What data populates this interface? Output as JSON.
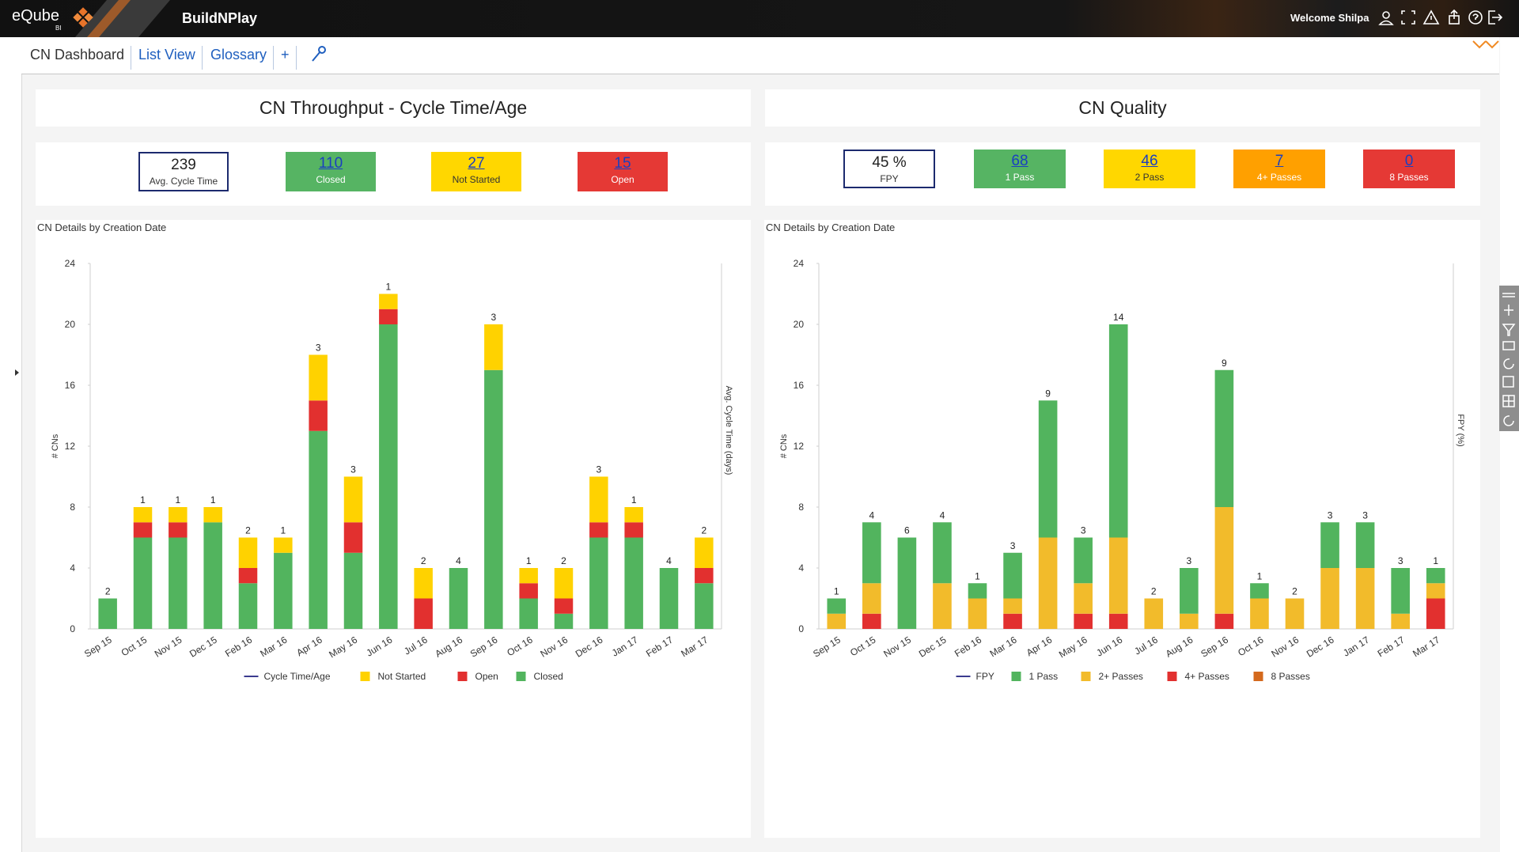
{
  "header": {
    "logo": "eQube",
    "logo_sub": "BI",
    "app": "BuildNPlay",
    "welcome": "Welcome Shilpa"
  },
  "tabs": [
    "CN Dashboard",
    "List View",
    "Glossary",
    "+"
  ],
  "panels": [
    {
      "title": "CN Throughput - Cycle Time/Age",
      "kpis": [
        {
          "value": 239,
          "label": "Avg. Cycle Time",
          "color": "#ffffff",
          "link": false
        },
        {
          "value": 110,
          "label": "Closed",
          "color": "#56b463",
          "link": true
        },
        {
          "value": 27,
          "label": "Not Started",
          "color": "#ffd700",
          "link": true
        },
        {
          "value": 15,
          "label": "Open",
          "color": "#e53935",
          "link": true
        }
      ]
    },
    {
      "title": "CN Quality",
      "kpis": [
        {
          "value": "45 %",
          "label": "FPY",
          "color": "#ffffff",
          "link": false
        },
        {
          "value": 68,
          "label": "1 Pass",
          "color": "#56b463",
          "link": true
        },
        {
          "value": 46,
          "label": "2 Pass",
          "color": "#ffd700",
          "link": true
        },
        {
          "value": 7,
          "label": "4+ Passes",
          "color": "#ffa000",
          "link": true
        },
        {
          "value": 0,
          "label": "8 Passes",
          "color": "#e53935",
          "link": true
        }
      ]
    }
  ],
  "chart_data": [
    {
      "type": "bar",
      "stacked": true,
      "title": "CN Details by Creation Date",
      "y_label": "# CNs",
      "y2_label": "Avg. Cycle Time (days)",
      "categories": [
        "Sep 15",
        "Oct 15",
        "Nov 15",
        "Dec 15",
        "Feb 16",
        "Mar 16",
        "Apr 16",
        "May 16",
        "Jun 16",
        "Jul 16",
        "Aug 16",
        "Sep 16",
        "Oct 16",
        "Nov 16",
        "Dec 16",
        "Jan 17",
        "Feb 17",
        "Mar 17"
      ],
      "ylim": [
        0,
        24
      ],
      "yticks": [
        0,
        4,
        8,
        12,
        16,
        20,
        24
      ],
      "series": [
        {
          "name": "Cycle Time/Age",
          "type": "line",
          "axis": "y2",
          "color": "#3b3b8f",
          "values": [
            null,
            null,
            null,
            null,
            null,
            null,
            null,
            null,
            null,
            null,
            null,
            null,
            null,
            null,
            null,
            null,
            null,
            null
          ]
        },
        {
          "name": "Not Started",
          "color": "#ffd200",
          "values": [
            null,
            1,
            1,
            1,
            2,
            1,
            3,
            3,
            1,
            2,
            null,
            3,
            1,
            2,
            3,
            1,
            null,
            2
          ]
        },
        {
          "name": "Open",
          "color": "#e2302f",
          "values": [
            null,
            1,
            1,
            null,
            1,
            null,
            2,
            2,
            1,
            2,
            null,
            null,
            1,
            1,
            1,
            1,
            null,
            1
          ]
        },
        {
          "name": "Closed",
          "color": "#52b45e",
          "values": [
            2,
            6,
            6,
            7,
            3,
            5,
            13,
            5,
            20,
            0,
            4,
            17,
            2,
            1,
            6,
            6,
            4,
            3
          ]
        }
      ]
    },
    {
      "type": "bar",
      "stacked": true,
      "title": "CN Details by Creation Date",
      "y_label": "# CNs",
      "y2_label": "FPY (%)",
      "categories": [
        "Sep 15",
        "Oct 15",
        "Nov 15",
        "Dec 15",
        "Feb 16",
        "Mar 16",
        "Apr 16",
        "May 16",
        "Jun 16",
        "Jul 16",
        "Aug 16",
        "Sep 16",
        "Oct 16",
        "Nov 16",
        "Dec 16",
        "Jan 17",
        "Feb 17",
        "Mar 17"
      ],
      "ylim": [
        0,
        24
      ],
      "yticks": [
        0,
        4,
        8,
        12,
        16,
        20,
        24
      ],
      "series": [
        {
          "name": "FPY",
          "type": "line",
          "axis": "y2",
          "color": "#3b3b8f",
          "values": [
            null,
            null,
            null,
            null,
            null,
            null,
            null,
            null,
            null,
            null,
            null,
            null,
            null,
            null,
            null,
            null,
            null,
            null
          ]
        },
        {
          "name": "1 Pass",
          "color": "#52b45e",
          "values": [
            1,
            4,
            6,
            4,
            1,
            3,
            9,
            3,
            14,
            null,
            3,
            9,
            1,
            null,
            3,
            3,
            3,
            1
          ]
        },
        {
          "name": "2+ Passes",
          "color": "#f2bb2b",
          "values": [
            1,
            2,
            null,
            3,
            2,
            1,
            6,
            2,
            5,
            2,
            1,
            7,
            2,
            2,
            4,
            4,
            1,
            1
          ]
        },
        {
          "name": "4+ Passes",
          "color": "#e2302f",
          "values": [
            null,
            1,
            null,
            null,
            null,
            1,
            null,
            1,
            1,
            null,
            null,
            1,
            null,
            null,
            null,
            null,
            null,
            2
          ]
        },
        {
          "name": "8 Passes",
          "color": "#d4691d",
          "values": [
            0,
            0,
            0,
            0,
            0,
            0,
            0,
            0,
            0,
            0,
            0,
            0,
            0,
            0,
            0,
            0,
            0,
            0
          ]
        }
      ]
    }
  ]
}
